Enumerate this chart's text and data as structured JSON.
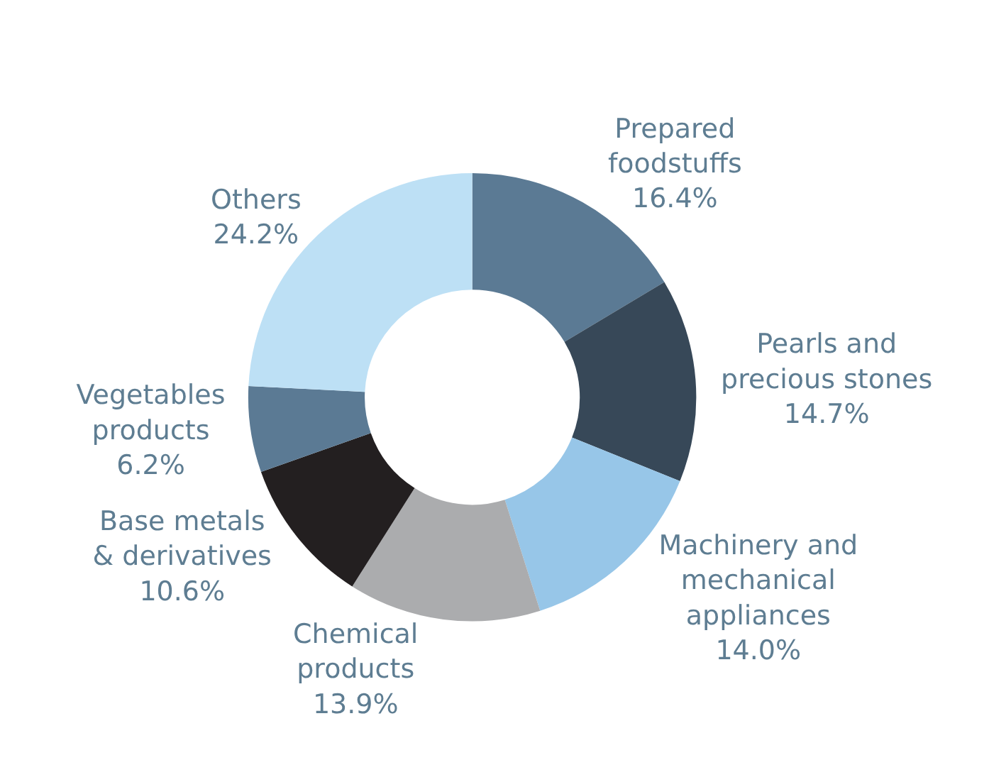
{
  "chart_data": {
    "type": "donut",
    "categories": [
      "Prepared\nfoodstuffs",
      "Pearls and\nprecious stones",
      "Machinery and\nmechanical\nappliances",
      "Chemical\nproducts",
      "Base metals\n& derivatives",
      "Vegetables\nproducts",
      "Others"
    ],
    "values": [
      16.4,
      14.7,
      14.0,
      13.9,
      10.6,
      6.2,
      24.2
    ],
    "value_labels": [
      "16.4%",
      "14.7%",
      "14.0%",
      "13.9%",
      "10.6%",
      "6.2%",
      "24.2%"
    ],
    "colors": [
      "#5b7a94",
      "#374858",
      "#97c6e8",
      "#abacae",
      "#231f20",
      "#5b7a94",
      "#bde0f5"
    ]
  }
}
